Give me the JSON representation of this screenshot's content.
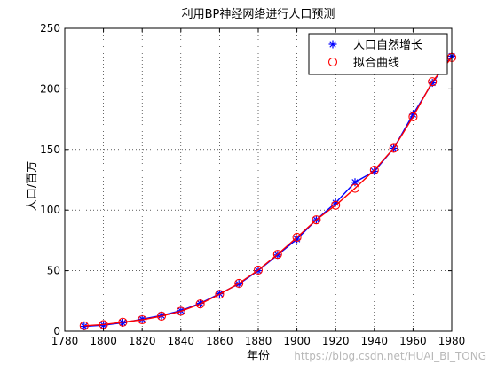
{
  "chart_data": {
    "type": "line",
    "title": "利用BP神经网络进行人口预测",
    "xlabel": "年份",
    "ylabel": "人口/百万",
    "xlim": [
      1780,
      1980
    ],
    "ylim": [
      0,
      250
    ],
    "xticks": [
      "1780",
      "1800",
      "1820",
      "1840",
      "1860",
      "1880",
      "1900",
      "1920",
      "1940",
      "1960",
      "1980"
    ],
    "yticks": [
      "0",
      "50",
      "100",
      "150",
      "200",
      "250"
    ],
    "grid": true,
    "legend_position": "top-right",
    "x": [
      1790,
      1800,
      1810,
      1820,
      1830,
      1840,
      1850,
      1860,
      1870,
      1880,
      1890,
      1900,
      1910,
      1920,
      1930,
      1940,
      1950,
      1960,
      1970,
      1980
    ],
    "series": [
      {
        "name": "人口自然增长",
        "marker": "star",
        "color": "#0000ff",
        "values": [
          4,
          5,
          7,
          10,
          13,
          17,
          23,
          31,
          39,
          50,
          63,
          76,
          92,
          106,
          123,
          132,
          151,
          179,
          205,
          227
        ]
      },
      {
        "name": "拟合曲线",
        "marker": "circle",
        "color": "#ff0000",
        "values": [
          4.5,
          5.5,
          7.5,
          9.5,
          12.5,
          16.5,
          22.5,
          30.5,
          39.5,
          50.5,
          63.5,
          77.5,
          92,
          104,
          118,
          133,
          151,
          177,
          206,
          226
        ]
      }
    ]
  },
  "watermark": "https://blog.csdn.net/HUAI_BI_TONG"
}
